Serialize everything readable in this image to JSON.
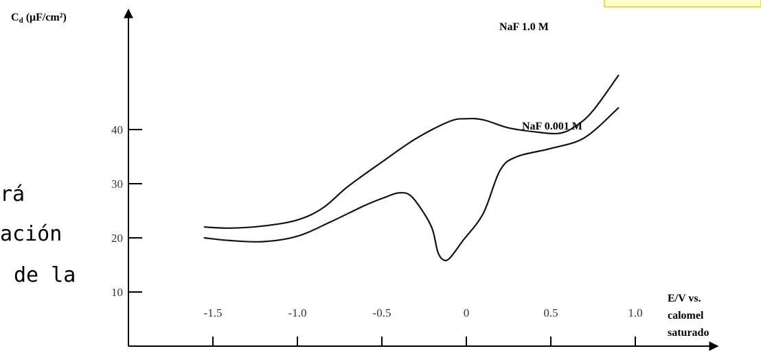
{
  "chart_data": {
    "type": "line",
    "ylabel": "Cd (μF/cm²)",
    "xlabel_lines": [
      "E/V vs.",
      "calomel",
      "saturado"
    ],
    "xticks": [
      -1.5,
      -1.0,
      -0.5,
      0,
      0.5,
      1.0
    ],
    "xtick_labels": [
      "-1.5",
      "-1.0",
      "-0.5",
      "0",
      "0.5",
      "1.0"
    ],
    "yticks": [
      10,
      20,
      30,
      40
    ],
    "ytick_labels": [
      "10",
      "20",
      "30",
      "40"
    ],
    "xlim": [
      -1.95,
      1.4
    ],
    "ylim": [
      0,
      52
    ],
    "grid": false,
    "series": [
      {
        "name": "NaF 1.0 M",
        "x": [
          -1.55,
          -1.4,
          -1.2,
          -1.0,
          -0.85,
          -0.7,
          -0.5,
          -0.3,
          -0.1,
          0.0,
          0.1,
          0.25,
          0.4,
          0.55,
          0.65,
          0.75,
          0.9
        ],
        "y": [
          22,
          21.8,
          22.2,
          23.3,
          25.5,
          29.5,
          34,
          38.3,
          41.5,
          42,
          41.8,
          40.3,
          39.6,
          39.3,
          40.7,
          43.5,
          50
        ]
      },
      {
        "name": "NaF 0.001 M",
        "x": [
          -1.55,
          -1.4,
          -1.2,
          -1.0,
          -0.8,
          -0.6,
          -0.48,
          -0.4,
          -0.33,
          -0.25,
          -0.2,
          -0.17,
          -0.14,
          -0.1,
          -0.02,
          0.1,
          0.2,
          0.3,
          0.5,
          0.7,
          0.9
        ],
        "y": [
          20,
          19.5,
          19.3,
          20.3,
          23,
          26,
          27.5,
          28.3,
          27.8,
          24.5,
          21.5,
          17.5,
          16,
          16.2,
          19.5,
          24.5,
          32.5,
          35,
          36.5,
          38.5,
          44
        ]
      }
    ],
    "series_labels": [
      "NaF 1.0 M",
      "NaF 0.001 M"
    ]
  },
  "side_text": [
    "rá",
    "ación",
    "de la"
  ]
}
